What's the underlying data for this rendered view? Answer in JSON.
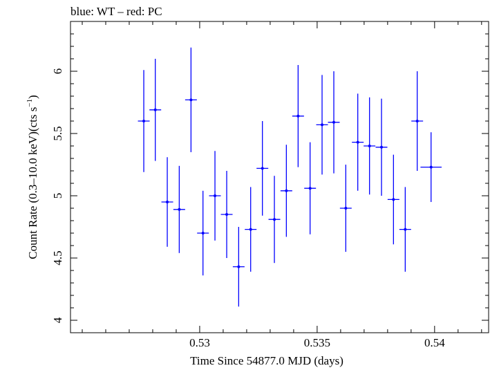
{
  "chart_data": {
    "type": "scatter",
    "title": "blue: WT – red: PC",
    "xlabel": "Time Since 54877.0 MJD (days)",
    "ylabel_main": "Count Rate (0.3–10.0 keV)(cts s",
    "ylabel_sup": "−1",
    "ylabel_tail": ")",
    "xlim": [
      0.5245,
      0.5423
    ],
    "ylim": [
      3.9,
      6.4
    ],
    "x_ticks": [
      {
        "value": 0.53,
        "label": "0.53"
      },
      {
        "value": 0.535,
        "label": "0.535"
      },
      {
        "value": 0.54,
        "label": "0.54"
      }
    ],
    "y_ticks": [
      {
        "value": 4,
        "label": "4"
      },
      {
        "value": 4.5,
        "label": "4.5"
      },
      {
        "value": 5,
        "label": "5"
      },
      {
        "value": 5.5,
        "label": "5.5"
      },
      {
        "value": 6,
        "label": "6"
      }
    ],
    "x_minor_step": 0.001,
    "y_minor_step": 0.1,
    "grid": false,
    "series": [
      {
        "color": "#0000ff",
        "points": [
          {
            "x": 0.52762,
            "xerr": 0.00025,
            "y": 5.6,
            "yerr": 0.41
          },
          {
            "x": 0.52811,
            "xerr": 0.00025,
            "y": 5.69,
            "yerr": 0.41
          },
          {
            "x": 0.52862,
            "xerr": 0.00025,
            "y": 4.95,
            "yerr": 0.36
          },
          {
            "x": 0.52913,
            "xerr": 0.00025,
            "y": 4.89,
            "yerr": 0.35
          },
          {
            "x": 0.52963,
            "xerr": 0.00025,
            "y": 5.77,
            "yerr": 0.42
          },
          {
            "x": 0.53014,
            "xerr": 0.00025,
            "y": 4.7,
            "yerr": 0.34
          },
          {
            "x": 0.53065,
            "xerr": 0.00025,
            "y": 5.0,
            "yerr": 0.36
          },
          {
            "x": 0.53115,
            "xerr": 0.00025,
            "y": 4.85,
            "yerr": 0.35
          },
          {
            "x": 0.53166,
            "xerr": 0.00025,
            "y": 4.43,
            "yerr": 0.32
          },
          {
            "x": 0.53217,
            "xerr": 0.00025,
            "y": 4.73,
            "yerr": 0.34
          },
          {
            "x": 0.53267,
            "xerr": 0.00025,
            "y": 5.22,
            "yerr": 0.38
          },
          {
            "x": 0.53318,
            "xerr": 0.00025,
            "y": 4.81,
            "yerr": 0.35
          },
          {
            "x": 0.53369,
            "xerr": 0.00025,
            "y": 5.04,
            "yerr": 0.37
          },
          {
            "x": 0.53419,
            "xerr": 0.00025,
            "y": 5.64,
            "yerr": 0.41
          },
          {
            "x": 0.5347,
            "xerr": 0.00025,
            "y": 5.06,
            "yerr": 0.37
          },
          {
            "x": 0.53521,
            "xerr": 0.00025,
            "y": 5.57,
            "yerr": 0.4
          },
          {
            "x": 0.53571,
            "xerr": 0.00025,
            "y": 5.59,
            "yerr": 0.41
          },
          {
            "x": 0.53622,
            "xerr": 0.00025,
            "y": 4.9,
            "yerr": 0.35
          },
          {
            "x": 0.53673,
            "xerr": 0.00025,
            "y": 5.43,
            "yerr": 0.39
          },
          {
            "x": 0.53723,
            "xerr": 0.00025,
            "y": 5.4,
            "yerr": 0.39
          },
          {
            "x": 0.53774,
            "xerr": 0.00025,
            "y": 5.39,
            "yerr": 0.39
          },
          {
            "x": 0.53825,
            "xerr": 0.00025,
            "y": 4.97,
            "yerr": 0.36
          },
          {
            "x": 0.53875,
            "xerr": 0.00025,
            "y": 4.73,
            "yerr": 0.34
          },
          {
            "x": 0.53926,
            "xerr": 0.00025,
            "y": 5.6,
            "yerr": 0.4
          },
          {
            "x": 0.53985,
            "xerr": 0.00045,
            "y": 5.23,
            "yerr": 0.28
          }
        ]
      }
    ]
  }
}
